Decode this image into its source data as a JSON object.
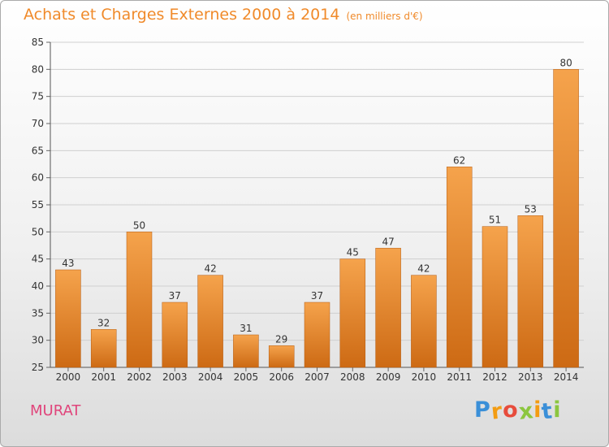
{
  "header": {
    "title": "Achats et Charges Externes 2000 à 2014",
    "unit": "(en milliers d'€)"
  },
  "footer": {
    "commune": "MURAT",
    "logo": {
      "letters": [
        "P",
        "r",
        "o",
        "x",
        "i",
        "t",
        "i"
      ],
      "colors": [
        "#3a8fd8",
        "#f39c12",
        "#e74c3c",
        "#8cc63f",
        "#f39c12",
        "#3a8fd8",
        "#8cc63f"
      ]
    }
  },
  "colors": {
    "bar_top": "#f5a34c",
    "bar_bottom": "#cd6a14",
    "title": "#f08a2a",
    "commune": "#e0457b"
  },
  "chart_data": {
    "type": "bar",
    "categories": [
      "2000",
      "2001",
      "2002",
      "2003",
      "2004",
      "2005",
      "2006",
      "2007",
      "2008",
      "2009",
      "2010",
      "2011",
      "2012",
      "2013",
      "2014"
    ],
    "values": [
      43,
      32,
      50,
      37,
      42,
      31,
      29,
      37,
      45,
      47,
      42,
      62,
      51,
      53,
      80
    ],
    "ylim": [
      25,
      85
    ],
    "yticks": [
      25,
      30,
      35,
      40,
      45,
      50,
      55,
      60,
      65,
      70,
      75,
      80,
      85
    ],
    "grid": true,
    "title": "Achats et Charges Externes 2000 à 2014",
    "xlabel": "",
    "ylabel": ""
  }
}
